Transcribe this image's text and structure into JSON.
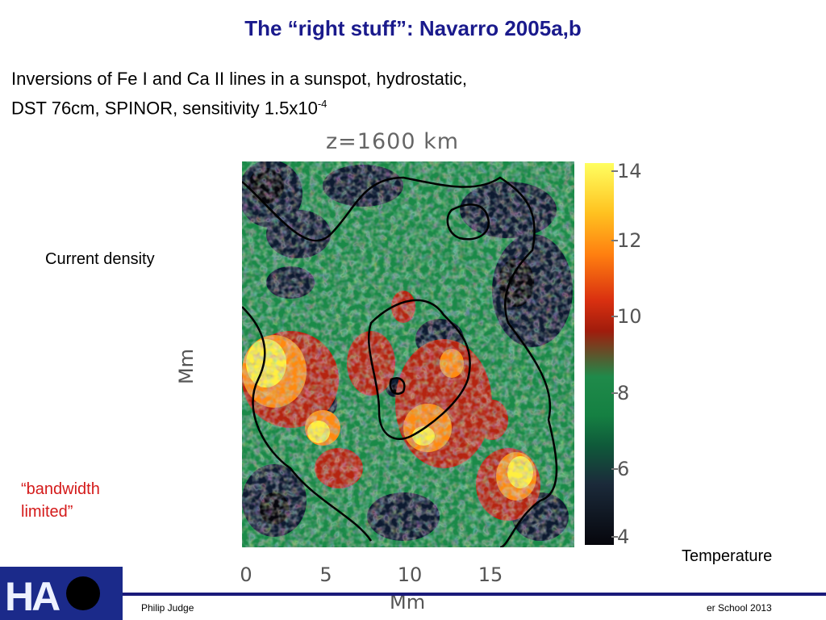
{
  "slide": {
    "title": "The “right stuff”: Navarro 2005a,b",
    "subtitle_line1": "Inversions of Fe I and Ca II lines in a sunspot, hydrostatic,",
    "subtitle_line2_prefix": "DST 76cm, SPINOR, sensitivity 1.5x10",
    "subtitle_line2_exponent": "-4",
    "label_current_density": "Current density",
    "label_bandwidth_line1": "“bandwidth",
    "label_bandwidth_line2": "limited”",
    "label_temperature": "Temperature",
    "accent_title_color": "#1a1a8c",
    "accent_red": "#d41a1a"
  },
  "plot": {
    "title": "z=1600 km",
    "ylabel": "Mm",
    "xlabel": "Mm",
    "x_ticks": [
      "0",
      "5",
      "10",
      "15"
    ],
    "colorbar_ticks": [
      "14",
      "12",
      "10",
      "8",
      "6",
      "4"
    ]
  },
  "chart_data": {
    "type": "heatmap",
    "title": "z=1600 km",
    "xlabel": "Mm",
    "ylabel": "Mm",
    "x_ticks": [
      0,
      5,
      10,
      15
    ],
    "colorbar_range": [
      4,
      14
    ],
    "colorbar_ticks": [
      4,
      6,
      8,
      10,
      12,
      14
    ],
    "colormap": [
      "#06060c",
      "#1b2a3a",
      "#0f5a3a",
      "#1f8a4a",
      "#a01c0c",
      "#d93010",
      "#ff7f10",
      "#ffc220",
      "#ffff60"
    ]
  },
  "footer": {
    "left": "Philip Judge",
    "right": "er School 2013",
    "logo_text": "HA",
    "bar_color": "#1a1a7a"
  }
}
